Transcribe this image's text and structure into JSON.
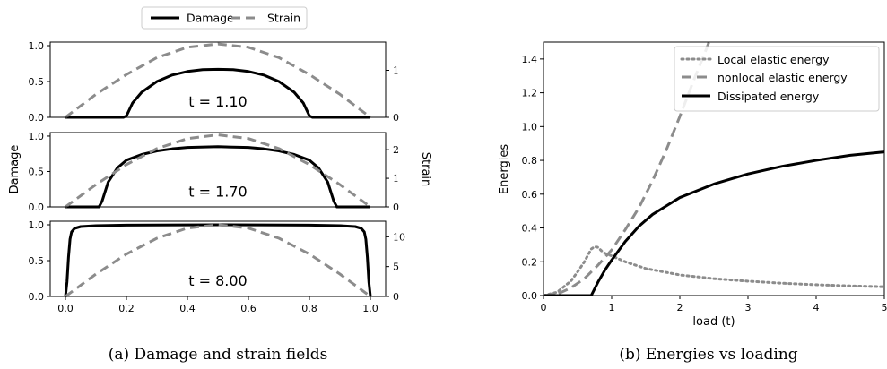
{
  "chart_data": [
    {
      "type": "line",
      "legend": {
        "placement": "top",
        "entries": [
          "Damage",
          "Strain"
        ]
      },
      "caption": "(a) Damage and strain fields",
      "xlim": [
        -0.05,
        1.05
      ],
      "xticks": [
        "0.0",
        "0.2",
        "0.4",
        "0.6",
        "0.8",
        "1.0"
      ],
      "ylabel_left": "Damage",
      "ylabel_right": "Strain",
      "panels": [
        {
          "annotation": "t = 1.10",
          "damage_ylim": [
            0,
            1.05
          ],
          "damage_yticks": [
            "0.0",
            "0.5",
            "1.0"
          ],
          "strain_ylim": [
            0,
            1.6
          ],
          "strain_yticks": [
            "0",
            "1"
          ],
          "series": [
            {
              "name": "Damage",
              "x": [
                0.0,
                0.19,
                0.2,
                0.22,
                0.25,
                0.3,
                0.35,
                0.4,
                0.45,
                0.5,
                0.55,
                0.6,
                0.65,
                0.7,
                0.75,
                0.78,
                0.8,
                0.81,
                1.0
              ],
              "y": [
                0.0,
                0.0,
                0.02,
                0.2,
                0.35,
                0.5,
                0.59,
                0.64,
                0.665,
                0.67,
                0.665,
                0.64,
                0.59,
                0.5,
                0.35,
                0.2,
                0.02,
                0.0,
                0.0
              ]
            },
            {
              "name": "Strain",
              "x": [
                0.0,
                0.1,
                0.2,
                0.3,
                0.4,
                0.5,
                0.6,
                0.7,
                0.8,
                0.9,
                1.0
              ],
              "y": [
                0.0,
                0.49,
                0.91,
                1.27,
                1.49,
                1.56,
                1.49,
                1.27,
                0.91,
                0.49,
                0.0
              ]
            }
          ]
        },
        {
          "annotation": "t = 1.70",
          "damage_ylim": [
            0,
            1.05
          ],
          "damage_yticks": [
            "0.0",
            "0.5",
            "1.0"
          ],
          "strain_ylim": [
            0,
            2.6
          ],
          "strain_yticks": [
            "0",
            "1",
            "2"
          ],
          "series": [
            {
              "name": "Damage",
              "x": [
                0.0,
                0.11,
                0.12,
                0.14,
                0.17,
                0.2,
                0.25,
                0.3,
                0.35,
                0.4,
                0.5,
                0.6,
                0.65,
                0.7,
                0.75,
                0.8,
                0.83,
                0.86,
                0.88,
                0.89,
                1.0
              ],
              "y": [
                0.0,
                0.0,
                0.08,
                0.35,
                0.55,
                0.66,
                0.74,
                0.79,
                0.82,
                0.84,
                0.85,
                0.84,
                0.82,
                0.79,
                0.74,
                0.66,
                0.55,
                0.35,
                0.08,
                0.0,
                0.0
              ]
            },
            {
              "name": "Strain",
              "x": [
                0.0,
                0.1,
                0.2,
                0.3,
                0.4,
                0.5,
                0.6,
                0.7,
                0.8,
                0.9,
                1.0
              ],
              "y": [
                0.0,
                0.78,
                1.48,
                2.04,
                2.39,
                2.52,
                2.39,
                2.04,
                1.48,
                0.78,
                0.0
              ]
            }
          ]
        },
        {
          "annotation": "t = 8.00",
          "damage_ylim": [
            0,
            1.05
          ],
          "damage_yticks": [
            "0.0",
            "0.5",
            "1.0"
          ],
          "strain_ylim": [
            0,
            12.6
          ],
          "strain_yticks": [
            "0",
            "5",
            "10"
          ],
          "series": [
            {
              "name": "Damage",
              "x": [
                0.0,
                0.005,
                0.01,
                0.015,
                0.02,
                0.03,
                0.05,
                0.1,
                0.2,
                0.5,
                0.8,
                0.9,
                0.95,
                0.97,
                0.98,
                0.985,
                0.99,
                0.995,
                1.0
              ],
              "y": [
                0.0,
                0.2,
                0.55,
                0.8,
                0.9,
                0.95,
                0.975,
                0.988,
                0.995,
                1.0,
                0.995,
                0.988,
                0.975,
                0.95,
                0.9,
                0.8,
                0.55,
                0.2,
                0.0
              ]
            },
            {
              "name": "Strain",
              "x": [
                0.0,
                0.1,
                0.2,
                0.3,
                0.4,
                0.5,
                0.6,
                0.7,
                0.8,
                0.9,
                1.0
              ],
              "y": [
                0.0,
                3.75,
                7.1,
                9.75,
                11.45,
                12.0,
                11.45,
                9.75,
                7.1,
                3.75,
                0.0
              ]
            }
          ]
        }
      ]
    },
    {
      "type": "line",
      "caption": "(b) Energies vs loading",
      "xlabel": "load (t)",
      "ylabel": "Energies",
      "xlim": [
        0,
        5
      ],
      "ylim": [
        0,
        1.5
      ],
      "xticks": [
        0,
        1,
        2,
        3,
        4,
        5
      ],
      "yticks": [
        "0.0",
        "0.2",
        "0.4",
        "0.6",
        "0.8",
        "1.0",
        "1.2",
        "1.4"
      ],
      "legend": {
        "placement": "top-right"
      },
      "series": [
        {
          "name": "Local elastic energy",
          "style": "dotted",
          "x": [
            0.0,
            0.2,
            0.4,
            0.5,
            0.6,
            0.7,
            0.75,
            0.8,
            0.85,
            0.9,
            1.0,
            1.2,
            1.5,
            2.0,
            2.5,
            3.0,
            3.5,
            4.0,
            4.5,
            5.0
          ],
          "y": [
            0.0,
            0.02,
            0.085,
            0.14,
            0.2,
            0.275,
            0.29,
            0.285,
            0.265,
            0.25,
            0.235,
            0.2,
            0.16,
            0.122,
            0.1,
            0.085,
            0.073,
            0.064,
            0.057,
            0.052
          ]
        },
        {
          "name": "nonlocal elastic energy",
          "style": "dashed",
          "x": [
            0.0,
            0.2,
            0.4,
            0.6,
            0.8,
            1.0,
            1.2,
            1.4,
            1.6,
            1.8,
            2.0,
            2.2,
            2.4,
            2.5
          ],
          "y": [
            0.0,
            0.008,
            0.045,
            0.1,
            0.18,
            0.27,
            0.39,
            0.52,
            0.68,
            0.86,
            1.06,
            1.27,
            1.47,
            1.58
          ]
        },
        {
          "name": "Dissipated energy",
          "style": "solid",
          "x": [
            0.0,
            0.7,
            0.8,
            0.9,
            1.0,
            1.2,
            1.4,
            1.6,
            1.8,
            2.0,
            2.5,
            3.0,
            3.5,
            4.0,
            4.5,
            5.0
          ],
          "y": [
            0.0,
            0.0,
            0.08,
            0.15,
            0.21,
            0.32,
            0.41,
            0.48,
            0.53,
            0.58,
            0.66,
            0.72,
            0.765,
            0.8,
            0.83,
            0.85
          ]
        }
      ]
    }
  ]
}
